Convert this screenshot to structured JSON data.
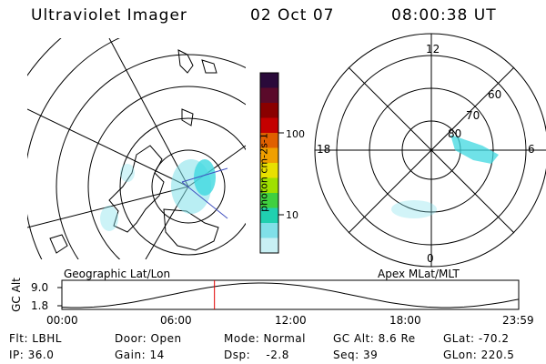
{
  "header": {
    "title": "Ultraviolet Imager",
    "date": "02 Oct 07",
    "time": "08:00:38 UT"
  },
  "left_panel": {
    "caption": "Geographic Lat/Lon"
  },
  "right_panel": {
    "caption": "Apex MLat/MLT",
    "mlt_labels": {
      "top": "12",
      "bottom": "0",
      "left": "18",
      "right": "6"
    },
    "lat_labels": [
      "80",
      "70",
      "60"
    ]
  },
  "colorbar": {
    "unit_label": "photon cm-2s-1",
    "ticks": [
      "100",
      "10"
    ],
    "colors": [
      "#2a0a3a",
      "#5a0a2a",
      "#8a0000",
      "#c40000",
      "#e06000",
      "#f0a000",
      "#e8e000",
      "#a0e000",
      "#40d040",
      "#20d0b0",
      "#80e0e8",
      "#c8f0f4"
    ]
  },
  "orbit_plot": {
    "ylabel": "GC Alt",
    "y_ticks": [
      "9.0",
      "1.8"
    ],
    "x_ticks": [
      "00:00",
      "06:00",
      "12:00",
      "18:00",
      "23:59"
    ],
    "current_time_fraction": 0.334
  },
  "info": {
    "row1": [
      {
        "label": "Flt: LBHL"
      },
      {
        "label": "Door: Open"
      },
      {
        "label": "Mode: Normal"
      },
      {
        "label": "GC Alt: 8.6 Re"
      },
      {
        "label": "GLat: -70.2"
      }
    ],
    "row2": [
      {
        "label": "IP: 36.0"
      },
      {
        "label": "Gain: 14"
      },
      {
        "label": "Dsp:    -2.8"
      },
      {
        "label": "Seq: 39"
      },
      {
        "label": "GLon: 220.5"
      }
    ]
  }
}
